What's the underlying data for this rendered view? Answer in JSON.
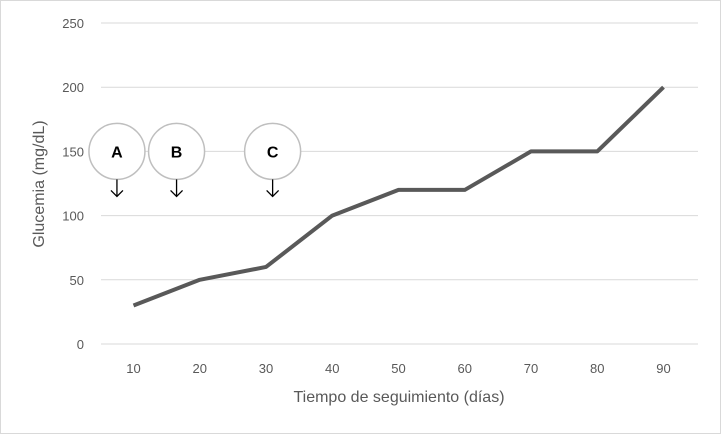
{
  "chart_data": {
    "type": "line",
    "title": "",
    "xlabel": "Tiempo de seguimiento (días)",
    "ylabel": "Glucemia (mg/dL)",
    "categories": [
      "10",
      "20",
      "30",
      "40",
      "50",
      "60",
      "70",
      "80",
      "90"
    ],
    "series": [
      {
        "values": [
          30,
          50,
          60,
          100,
          120,
          120,
          150,
          150,
          200
        ]
      }
    ],
    "ylim": [
      0,
      250
    ],
    "yticks": [
      "0",
      "50",
      "100",
      "150",
      "200",
      "250"
    ],
    "grid": true,
    "legend": "none",
    "annotations": [
      {
        "label": "A",
        "x": 7.5
      },
      {
        "label": "B",
        "x": 16.5
      },
      {
        "label": "C",
        "x": 31
      }
    ],
    "annotation_y": 150,
    "colors": {
      "line": "#595959",
      "grid": "#d9d9d9",
      "text": "#595959",
      "marker_border": "#bfbfbf"
    }
  }
}
